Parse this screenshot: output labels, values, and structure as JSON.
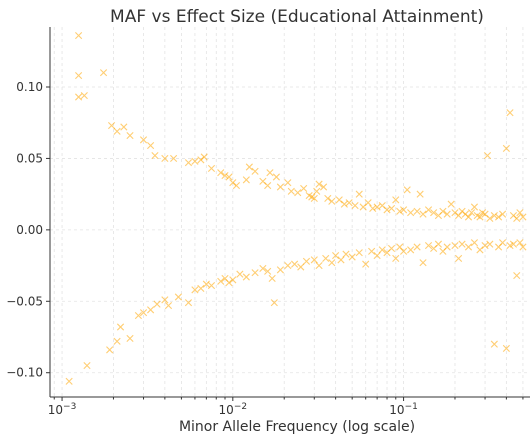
{
  "chart_data": {
    "type": "scatter",
    "title": "MAF vs Effect Size (Educational Attainment)",
    "xlabel": "Minor Allele Frequency (log scale)",
    "ylabel": "",
    "x_scale": "log",
    "xlim": [
      0.00085,
      0.55
    ],
    "ylim": [
      -0.117,
      0.142
    ],
    "x_ticks": [
      {
        "value": 0.001,
        "base": "10",
        "exp": "−3"
      },
      {
        "value": 0.01,
        "base": "10",
        "exp": "−2"
      },
      {
        "value": 0.1,
        "base": "10",
        "exp": "−1"
      }
    ],
    "y_ticks": [
      {
        "value": 0.1,
        "label": "0.10"
      },
      {
        "value": 0.05,
        "label": "0.05"
      },
      {
        "value": 0.0,
        "label": "0.00"
      },
      {
        "value": -0.05,
        "label": "−0.05"
      },
      {
        "value": -0.1,
        "label": "−0.10"
      }
    ],
    "grid": true,
    "marker": "x",
    "color": "#ffa500",
    "series": [
      {
        "points": [
          [
            0.00125,
            0.136
          ],
          [
            0.00125,
            0.108
          ],
          [
            0.00125,
            0.093
          ],
          [
            0.00135,
            0.094
          ],
          [
            0.00175,
            0.11
          ],
          [
            0.00195,
            0.073
          ],
          [
            0.0021,
            0.069
          ],
          [
            0.0023,
            0.072
          ],
          [
            0.0025,
            0.066
          ],
          [
            0.003,
            0.063
          ],
          [
            0.0033,
            0.059
          ],
          [
            0.0035,
            0.052
          ],
          [
            0.004,
            0.05
          ],
          [
            0.0045,
            0.05
          ],
          [
            0.0055,
            0.047
          ],
          [
            0.006,
            0.048
          ],
          [
            0.0065,
            0.049
          ],
          [
            0.0068,
            0.051
          ],
          [
            0.0075,
            0.043
          ],
          [
            0.0085,
            0.04
          ],
          [
            0.009,
            0.038
          ],
          [
            0.0095,
            0.037
          ],
          [
            0.01,
            0.033
          ],
          [
            0.0105,
            0.031
          ],
          [
            0.012,
            0.035
          ],
          [
            0.0125,
            0.044
          ],
          [
            0.0135,
            0.041
          ],
          [
            0.015,
            0.034
          ],
          [
            0.016,
            0.031
          ],
          [
            0.0165,
            0.04
          ],
          [
            0.018,
            0.037
          ],
          [
            0.019,
            0.03
          ],
          [
            0.021,
            0.033
          ],
          [
            0.022,
            0.027
          ],
          [
            0.024,
            0.026
          ],
          [
            0.026,
            0.029
          ],
          [
            0.028,
            0.024
          ],
          [
            0.029,
            0.023
          ],
          [
            0.03,
            0.022
          ],
          [
            0.031,
            0.027
          ],
          [
            0.032,
            0.032
          ],
          [
            0.034,
            0.03
          ],
          [
            0.036,
            0.022
          ],
          [
            0.038,
            0.02
          ],
          [
            0.042,
            0.021
          ],
          [
            0.045,
            0.018
          ],
          [
            0.048,
            0.019
          ],
          [
            0.052,
            0.017
          ],
          [
            0.055,
            0.025
          ],
          [
            0.058,
            0.016
          ],
          [
            0.062,
            0.019
          ],
          [
            0.066,
            0.015
          ],
          [
            0.07,
            0.016
          ],
          [
            0.075,
            0.017
          ],
          [
            0.08,
            0.014
          ],
          [
            0.085,
            0.015
          ],
          [
            0.09,
            0.021
          ],
          [
            0.095,
            0.013
          ],
          [
            0.1,
            0.014
          ],
          [
            0.105,
            0.028
          ],
          [
            0.11,
            0.012
          ],
          [
            0.12,
            0.013
          ],
          [
            0.125,
            0.025
          ],
          [
            0.13,
            0.011
          ],
          [
            0.14,
            0.014
          ],
          [
            0.15,
            0.012
          ],
          [
            0.16,
            0.01
          ],
          [
            0.17,
            0.013
          ],
          [
            0.18,
            0.011
          ],
          [
            0.19,
            0.018
          ],
          [
            0.2,
            0.012
          ],
          [
            0.21,
            0.01
          ],
          [
            0.22,
            0.013
          ],
          [
            0.23,
            0.011
          ],
          [
            0.24,
            0.009
          ],
          [
            0.25,
            0.012
          ],
          [
            0.26,
            0.016
          ],
          [
            0.27,
            0.01
          ],
          [
            0.28,
            0.009
          ],
          [
            0.29,
            0.012
          ],
          [
            0.3,
            0.011
          ],
          [
            0.31,
            0.052
          ],
          [
            0.32,
            0.008
          ],
          [
            0.34,
            0.01
          ],
          [
            0.36,
            0.009
          ],
          [
            0.38,
            0.011
          ],
          [
            0.4,
            0.057
          ],
          [
            0.42,
            0.082
          ],
          [
            0.44,
            0.01
          ],
          [
            0.46,
            0.008
          ],
          [
            0.48,
            0.012
          ],
          [
            0.5,
            0.009
          ],
          [
            0.0011,
            -0.106
          ],
          [
            0.0014,
            -0.095
          ],
          [
            0.0019,
            -0.084
          ],
          [
            0.0021,
            -0.078
          ],
          [
            0.0022,
            -0.068
          ],
          [
            0.0025,
            -0.076
          ],
          [
            0.0028,
            -0.06
          ],
          [
            0.003,
            -0.058
          ],
          [
            0.0033,
            -0.056
          ],
          [
            0.0036,
            -0.052
          ],
          [
            0.004,
            -0.049
          ],
          [
            0.0042,
            -0.053
          ],
          [
            0.0048,
            -0.047
          ],
          [
            0.0055,
            -0.051
          ],
          [
            0.006,
            -0.042
          ],
          [
            0.0065,
            -0.041
          ],
          [
            0.007,
            -0.038
          ],
          [
            0.0075,
            -0.039
          ],
          [
            0.0085,
            -0.036
          ],
          [
            0.009,
            -0.034
          ],
          [
            0.0095,
            -0.037
          ],
          [
            0.01,
            -0.035
          ],
          [
            0.011,
            -0.031
          ],
          [
            0.012,
            -0.033
          ],
          [
            0.0135,
            -0.03
          ],
          [
            0.015,
            -0.027
          ],
          [
            0.016,
            -0.029
          ],
          [
            0.017,
            -0.034
          ],
          [
            0.0175,
            -0.051
          ],
          [
            0.019,
            -0.028
          ],
          [
            0.021,
            -0.025
          ],
          [
            0.023,
            -0.024
          ],
          [
            0.025,
            -0.026
          ],
          [
            0.027,
            -0.022
          ],
          [
            0.03,
            -0.021
          ],
          [
            0.032,
            -0.025
          ],
          [
            0.035,
            -0.02
          ],
          [
            0.038,
            -0.023
          ],
          [
            0.04,
            -0.018
          ],
          [
            0.043,
            -0.021
          ],
          [
            0.046,
            -0.017
          ],
          [
            0.05,
            -0.019
          ],
          [
            0.055,
            -0.016
          ],
          [
            0.06,
            -0.024
          ],
          [
            0.065,
            -0.015
          ],
          [
            0.07,
            -0.018
          ],
          [
            0.075,
            -0.014
          ],
          [
            0.08,
            -0.016
          ],
          [
            0.085,
            -0.013
          ],
          [
            0.09,
            -0.02
          ],
          [
            0.095,
            -0.012
          ],
          [
            0.1,
            -0.015
          ],
          [
            0.11,
            -0.014
          ],
          [
            0.12,
            -0.012
          ],
          [
            0.13,
            -0.023
          ],
          [
            0.14,
            -0.011
          ],
          [
            0.15,
            -0.013
          ],
          [
            0.16,
            -0.01
          ],
          [
            0.17,
            -0.015
          ],
          [
            0.18,
            -0.012
          ],
          [
            0.2,
            -0.011
          ],
          [
            0.21,
            -0.02
          ],
          [
            0.22,
            -0.01
          ],
          [
            0.24,
            -0.012
          ],
          [
            0.26,
            -0.009
          ],
          [
            0.28,
            -0.014
          ],
          [
            0.3,
            -0.011
          ],
          [
            0.32,
            -0.01
          ],
          [
            0.34,
            -0.08
          ],
          [
            0.36,
            -0.012
          ],
          [
            0.38,
            -0.009
          ],
          [
            0.4,
            -0.083
          ],
          [
            0.42,
            -0.011
          ],
          [
            0.44,
            -0.01
          ],
          [
            0.46,
            -0.032
          ],
          [
            0.48,
            -0.009
          ],
          [
            0.5,
            -0.012
          ]
        ]
      }
    ]
  }
}
